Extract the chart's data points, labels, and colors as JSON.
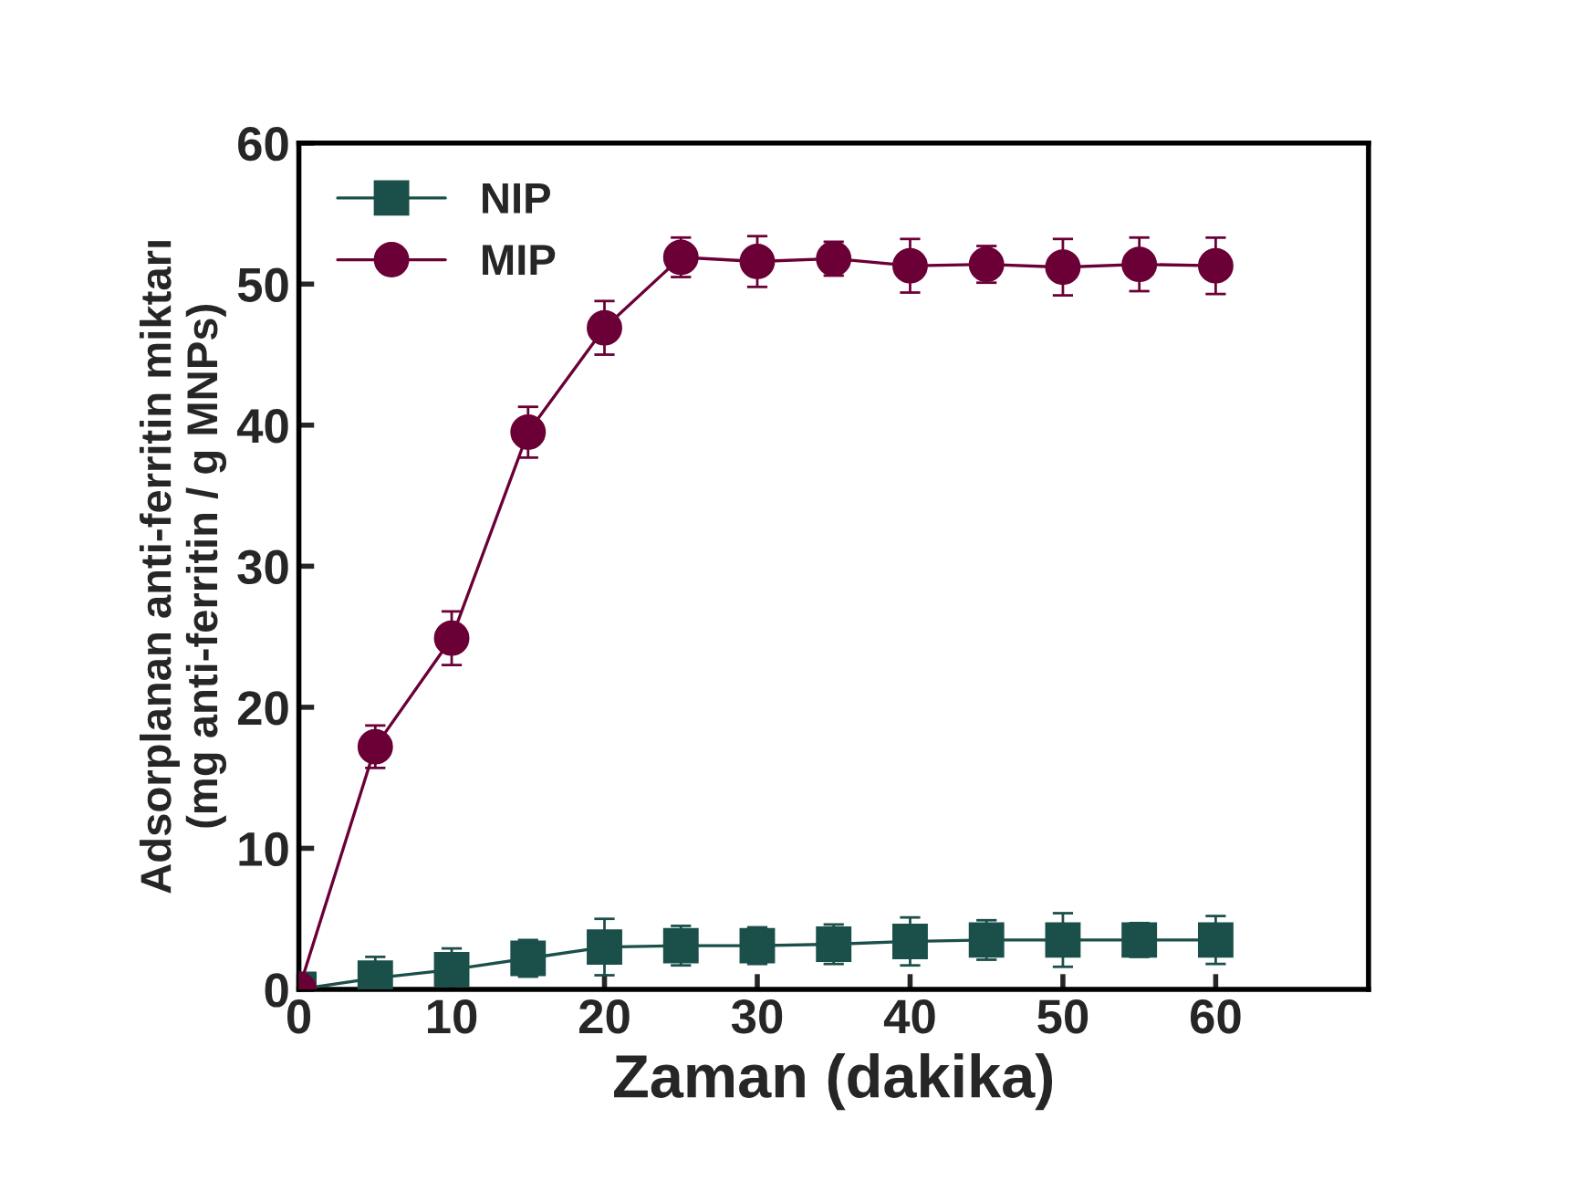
{
  "chart_data": {
    "type": "line",
    "xlabel": "Zaman (dakika)",
    "ylabel": "Adsorplanan anti-ferritin miktarı\n(mg anti-ferritin / g MNPs)",
    "x": [
      0,
      5,
      10,
      15,
      20,
      25,
      30,
      35,
      40,
      45,
      50,
      55,
      60
    ],
    "series": [
      {
        "name": "NIP",
        "color": "#1b4f4a",
        "marker": "square",
        "values": [
          0,
          0.8,
          1.4,
          2.2,
          3.0,
          3.1,
          3.1,
          3.2,
          3.4,
          3.5,
          3.5,
          3.5,
          3.5
        ],
        "errors": [
          null,
          1.5,
          1.5,
          1.3,
          2.0,
          1.4,
          1.3,
          1.4,
          1.7,
          1.4,
          1.9,
          1.2,
          1.7
        ]
      },
      {
        "name": "MIP",
        "color": "#6b0037",
        "marker": "circle",
        "values": [
          0,
          17.2,
          24.9,
          39.5,
          46.9,
          51.9,
          51.6,
          51.8,
          51.3,
          51.4,
          51.2,
          51.4,
          51.3
        ],
        "errors": [
          null,
          1.5,
          1.9,
          1.8,
          1.9,
          1.4,
          1.8,
          1.2,
          1.9,
          1.3,
          2.0,
          1.9,
          2.0
        ]
      }
    ],
    "xlim": [
      0,
      70
    ],
    "xticks": [
      0,
      10,
      20,
      30,
      40,
      50,
      60
    ],
    "ylim": [
      0,
      60
    ],
    "yticks": [
      0,
      10,
      20,
      30,
      40,
      50,
      60
    ],
    "grid": false,
    "legend": "top left",
    "line_style": "solid"
  }
}
